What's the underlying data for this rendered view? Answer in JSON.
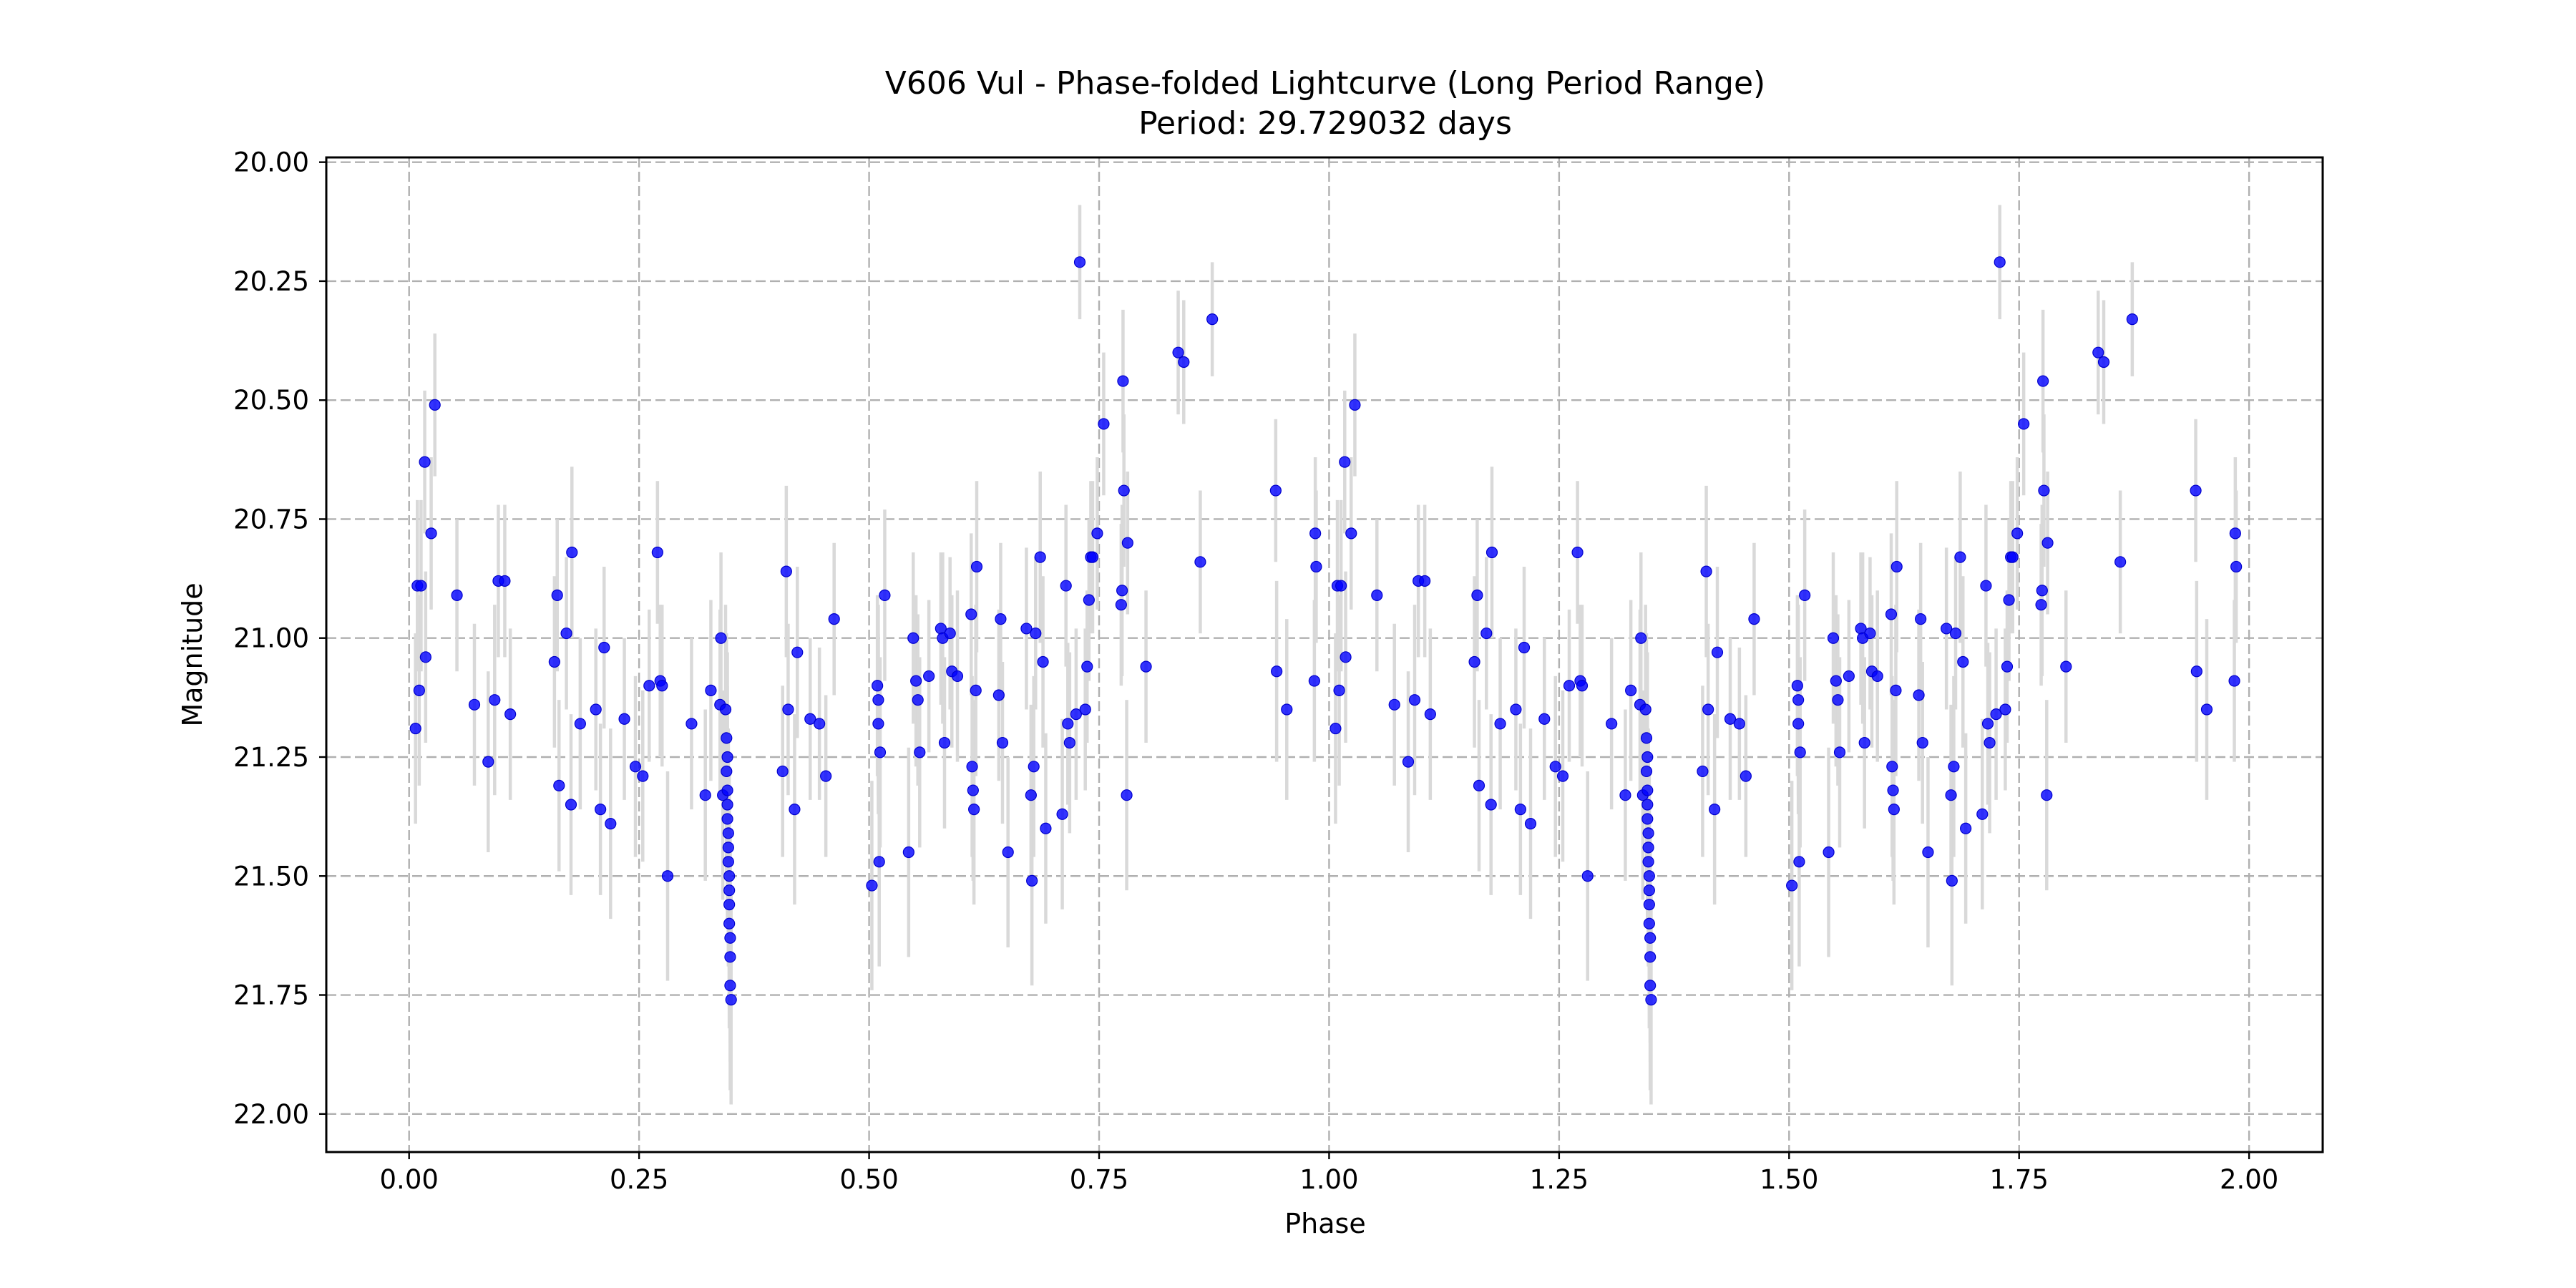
{
  "chart_data": {
    "type": "scatter",
    "title": "V606 Vul - Phase-folded Lightcurve (Long Period Range)",
    "subtitle": "Period: 29.729032 days",
    "xlabel": "Phase",
    "ylabel": "Magnitude",
    "xlim": [
      -0.09,
      2.08
    ],
    "ylim": [
      22.08,
      19.99
    ],
    "y_inverted": true,
    "grid": true,
    "grid_style": "dashed",
    "xticks": [
      0.0,
      0.25,
      0.5,
      0.75,
      1.0,
      1.25,
      1.5,
      1.75,
      2.0
    ],
    "xtick_labels": [
      "0.00",
      "0.25",
      "0.50",
      "0.75",
      "1.00",
      "1.25",
      "1.50",
      "1.75",
      "2.00"
    ],
    "yticks": [
      20.0,
      20.25,
      20.5,
      20.75,
      21.0,
      21.25,
      21.5,
      21.75,
      22.0
    ],
    "ytick_labels": [
      "20.00",
      "20.25",
      "20.50",
      "20.75",
      "21.00",
      "21.25",
      "21.50",
      "21.75",
      "22.00"
    ],
    "marker_color": "#0000ff",
    "errorbar_color": "#d9d9d9",
    "points": [
      [
        0.007,
        21.19,
        0.2
      ],
      [
        0.009,
        20.89,
        0.18
      ],
      [
        0.011,
        21.11,
        0.2
      ],
      [
        0.013,
        20.89,
        0.18
      ],
      [
        0.017,
        20.63,
        0.15
      ],
      [
        0.018,
        21.04,
        0.18
      ],
      [
        0.024,
        20.78,
        0.16
      ],
      [
        0.028,
        20.51,
        0.15
      ],
      [
        0.052,
        20.91,
        0.16
      ],
      [
        0.071,
        21.14,
        0.17
      ],
      [
        0.086,
        21.26,
        0.19
      ],
      [
        0.093,
        21.13,
        0.2
      ],
      [
        0.097,
        20.88,
        0.16
      ],
      [
        0.104,
        20.88,
        0.16
      ],
      [
        0.11,
        21.16,
        0.18
      ],
      [
        0.158,
        21.05,
        0.18
      ],
      [
        0.161,
        20.91,
        0.16
      ],
      [
        0.163,
        21.31,
        0.18
      ],
      [
        0.171,
        20.99,
        0.16
      ],
      [
        0.176,
        21.35,
        0.19
      ],
      [
        0.177,
        20.82,
        0.18
      ],
      [
        0.186,
        21.18,
        0.18
      ],
      [
        0.203,
        21.15,
        0.17
      ],
      [
        0.208,
        21.36,
        0.18
      ],
      [
        0.212,
        21.02,
        0.17
      ],
      [
        0.219,
        21.39,
        0.2
      ],
      [
        0.234,
        21.17,
        0.17
      ],
      [
        0.246,
        21.27,
        0.19
      ],
      [
        0.254,
        21.29,
        0.18
      ],
      [
        0.261,
        21.1,
        0.16
      ],
      [
        0.27,
        20.82,
        0.15
      ],
      [
        0.273,
        21.09,
        0.16
      ],
      [
        0.275,
        21.1,
        0.17
      ],
      [
        0.281,
        21.5,
        0.22
      ],
      [
        0.307,
        21.18,
        0.18
      ],
      [
        0.322,
        21.33,
        0.18
      ],
      [
        0.328,
        21.11,
        0.19
      ],
      [
        0.338,
        21.14,
        0.2
      ],
      [
        0.339,
        21.0,
        0.18
      ],
      [
        0.341,
        21.33,
        0.22
      ],
      [
        0.344,
        21.15,
        0.22
      ],
      [
        0.345,
        21.21,
        0.22
      ],
      [
        0.345,
        21.28,
        0.22
      ],
      [
        0.346,
        21.32,
        0.22
      ],
      [
        0.346,
        21.35,
        0.22
      ],
      [
        0.346,
        21.38,
        0.22
      ],
      [
        0.347,
        21.41,
        0.22
      ],
      [
        0.347,
        21.44,
        0.22
      ],
      [
        0.347,
        21.47,
        0.22
      ],
      [
        0.348,
        21.5,
        0.22
      ],
      [
        0.348,
        21.53,
        0.22
      ],
      [
        0.348,
        21.56,
        0.22
      ],
      [
        0.348,
        21.6,
        0.22
      ],
      [
        0.349,
        21.63,
        0.22
      ],
      [
        0.349,
        21.67,
        0.22
      ],
      [
        0.349,
        21.73,
        0.22
      ],
      [
        0.35,
        21.76,
        0.22
      ],
      [
        0.346,
        21.25,
        0.22
      ],
      [
        0.406,
        21.28,
        0.18
      ],
      [
        0.41,
        20.86,
        0.18
      ],
      [
        0.412,
        21.15,
        0.18
      ],
      [
        0.419,
        21.36,
        0.2
      ],
      [
        0.422,
        21.03,
        0.18
      ],
      [
        0.436,
        21.17,
        0.17
      ],
      [
        0.446,
        21.18,
        0.16
      ],
      [
        0.453,
        21.29,
        0.17
      ],
      [
        0.462,
        20.96,
        0.16
      ],
      [
        0.503,
        21.52,
        0.22
      ],
      [
        0.509,
        21.1,
        0.19
      ],
      [
        0.51,
        21.13,
        0.2
      ],
      [
        0.51,
        21.18,
        0.19
      ],
      [
        0.511,
        21.47,
        0.22
      ],
      [
        0.512,
        21.24,
        0.2
      ],
      [
        0.517,
        20.91,
        0.18
      ],
      [
        0.543,
        21.45,
        0.22
      ],
      [
        0.548,
        21.0,
        0.18
      ],
      [
        0.551,
        21.09,
        0.18
      ],
      [
        0.553,
        21.13,
        0.18
      ],
      [
        0.555,
        21.24,
        0.2
      ],
      [
        0.565,
        21.08,
        0.16
      ],
      [
        0.578,
        20.98,
        0.16
      ],
      [
        0.58,
        21.0,
        0.18
      ],
      [
        0.582,
        21.22,
        0.18
      ],
      [
        0.588,
        20.99,
        0.16
      ],
      [
        0.59,
        21.07,
        0.16
      ],
      [
        0.596,
        21.08,
        0.18
      ],
      [
        0.611,
        20.95,
        0.17
      ],
      [
        0.612,
        21.27,
        0.19
      ],
      [
        0.613,
        21.32,
        0.19
      ],
      [
        0.614,
        21.36,
        0.2
      ],
      [
        0.616,
        21.11,
        0.18
      ],
      [
        0.617,
        20.85,
        0.18
      ],
      [
        0.641,
        21.12,
        0.18
      ],
      [
        0.643,
        20.96,
        0.16
      ],
      [
        0.645,
        21.22,
        0.17
      ],
      [
        0.651,
        21.45,
        0.2
      ],
      [
        0.671,
        20.98,
        0.17
      ],
      [
        0.676,
        21.33,
        0.19
      ],
      [
        0.677,
        21.51,
        0.22
      ],
      [
        0.679,
        21.27,
        0.19
      ],
      [
        0.681,
        20.99,
        0.16
      ],
      [
        0.686,
        20.83,
        0.18
      ],
      [
        0.689,
        21.05,
        0.18
      ],
      [
        0.692,
        21.4,
        0.2
      ],
      [
        0.71,
        21.37,
        0.2
      ],
      [
        0.714,
        20.89,
        0.17
      ],
      [
        0.716,
        21.18,
        0.17
      ],
      [
        0.718,
        21.22,
        0.19
      ],
      [
        0.725,
        21.16,
        0.18
      ],
      [
        0.729,
        20.21,
        0.12
      ],
      [
        0.735,
        21.15,
        0.17
      ],
      [
        0.737,
        21.06,
        0.16
      ],
      [
        0.739,
        20.92,
        0.17
      ],
      [
        0.741,
        20.83,
        0.16
      ],
      [
        0.743,
        20.83,
        0.16
      ],
      [
        0.748,
        20.78,
        0.16
      ],
      [
        0.755,
        20.55,
        0.15
      ],
      [
        0.774,
        20.93,
        0.17
      ],
      [
        0.775,
        20.9,
        0.18
      ],
      [
        0.776,
        20.46,
        0.15
      ],
      [
        0.777,
        20.69,
        0.16
      ],
      [
        0.78,
        21.33,
        0.2
      ],
      [
        0.781,
        20.8,
        0.15
      ],
      [
        0.801,
        21.06,
        0.16
      ],
      [
        0.836,
        20.4,
        0.13
      ],
      [
        0.842,
        20.42,
        0.13
      ],
      [
        0.86,
        20.84,
        0.15
      ],
      [
        0.873,
        20.33,
        0.12
      ],
      [
        0.942,
        20.69,
        0.15
      ],
      [
        0.943,
        21.07,
        0.19
      ],
      [
        0.954,
        21.15,
        0.19
      ],
      [
        0.984,
        21.09,
        0.17
      ],
      [
        0.985,
        20.78,
        0.16
      ],
      [
        0.986,
        20.85,
        0.16
      ]
    ]
  }
}
